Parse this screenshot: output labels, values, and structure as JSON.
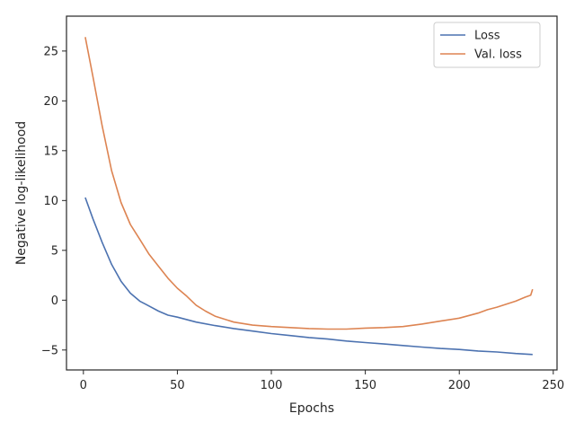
{
  "chart_data": {
    "type": "line",
    "xlabel": "Epochs",
    "ylabel": "Negative log-likelihood",
    "xlim": [
      -9,
      252
    ],
    "ylim": [
      -7,
      28.5
    ],
    "xticks": [
      0,
      50,
      100,
      150,
      200,
      250
    ],
    "yticks": [
      -5,
      0,
      5,
      10,
      15,
      20,
      25
    ],
    "grid": false,
    "legend_position": "top-right",
    "series": [
      {
        "name": "Loss",
        "color": "#4c72b0",
        "x": [
          1,
          5,
          10,
          15,
          20,
          25,
          30,
          33,
          40,
          45,
          50,
          60,
          70,
          80,
          90,
          100,
          110,
          120,
          130,
          140,
          150,
          160,
          170,
          180,
          190,
          200,
          210,
          220,
          230,
          239
        ],
        "y": [
          10.3,
          8.2,
          5.8,
          3.6,
          1.9,
          0.7,
          -0.1,
          -0.4,
          -1.1,
          -1.5,
          -1.7,
          -2.2,
          -2.55,
          -2.85,
          -3.1,
          -3.35,
          -3.55,
          -3.75,
          -3.9,
          -4.1,
          -4.25,
          -4.4,
          -4.55,
          -4.7,
          -4.85,
          -4.95,
          -5.1,
          -5.2,
          -5.35,
          -5.45
        ]
      },
      {
        "name": "Val. loss",
        "color": "#dd8452",
        "x": [
          1,
          5,
          10,
          15,
          20,
          25,
          30,
          35,
          40,
          45,
          50,
          55,
          60,
          65,
          70,
          80,
          90,
          100,
          110,
          120,
          130,
          140,
          150,
          160,
          170,
          180,
          190,
          200,
          210,
          215,
          220,
          225,
          230,
          235,
          238,
          239
        ],
        "y": [
          26.4,
          22.5,
          17.5,
          13.0,
          9.8,
          7.6,
          6.1,
          4.6,
          3.4,
          2.2,
          1.2,
          0.4,
          -0.5,
          -1.1,
          -1.6,
          -2.2,
          -2.5,
          -2.65,
          -2.75,
          -2.85,
          -2.9,
          -2.9,
          -2.8,
          -2.75,
          -2.65,
          -2.4,
          -2.1,
          -1.8,
          -1.3,
          -0.95,
          -0.7,
          -0.4,
          -0.1,
          0.3,
          0.5,
          1.1
        ]
      }
    ]
  }
}
